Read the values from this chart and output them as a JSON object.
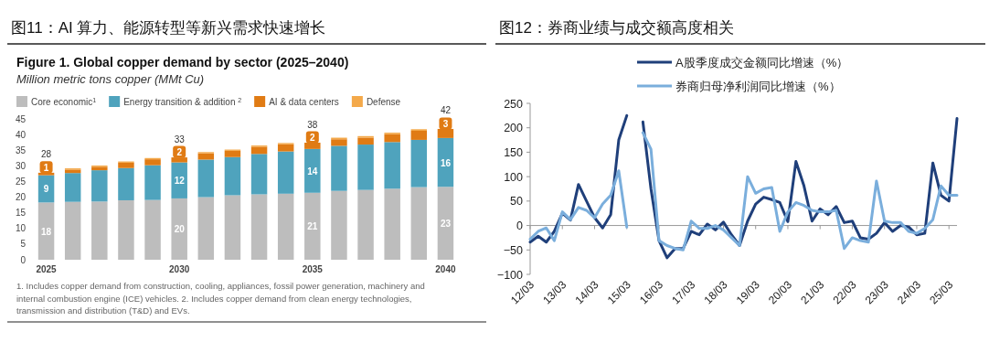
{
  "chart_data": [
    {
      "type": "bar",
      "stacked": true,
      "title": "图11：AI 算力、能源转型等新兴需求快速增长",
      "subtitle": "Figure 1. Global copper demand by sector (2025–2040)",
      "ylabel": "Million metric tons copper (MMt Cu)",
      "annotations": [
        "1. Includes copper demand from construction, cooling, appliances, fossil power generation, machinery and internal combustion engine (ICE) vehicles. 2. Includes copper demand from clean energy technologies, transmission and distribution (T&D) and EVs."
      ],
      "categories": [
        "2025",
        null,
        null,
        null,
        null,
        "2030",
        null,
        null,
        null,
        null,
        "2035",
        null,
        null,
        null,
        null,
        "2040"
      ],
      "series": [
        {
          "name": "Core economic$^{1}$",
          "color": "#bdbdbd",
          "values": [
            18.3,
            18.5,
            18.6,
            19.0,
            19.1,
            19.6,
            20.0,
            20.6,
            20.9,
            21.1,
            21.4,
            22.0,
            22.3,
            22.7,
            23.2,
            23.3
          ],
          "value_labels": [
            "18",
            null,
            null,
            null,
            null,
            "20",
            null,
            null,
            null,
            null,
            "21",
            null,
            null,
            null,
            null,
            "23"
          ]
        },
        {
          "name": "Energy transition & addition $^{2}$",
          "color": "#4fa3bd",
          "values": [
            8.7,
            9.2,
            10.0,
            10.3,
            11.1,
            11.5,
            12.0,
            12.2,
            12.9,
            13.5,
            14.0,
            14.4,
            14.5,
            14.9,
            15.1,
            15.6
          ],
          "value_labels": [
            "9",
            null,
            null,
            null,
            null,
            "12",
            null,
            null,
            null,
            null,
            "14",
            null,
            null,
            null,
            null,
            "16"
          ]
        },
        {
          "name": "AI & data centers",
          "color": "#e07b14",
          "values": [
            0.8,
            1.1,
            1.1,
            1.7,
            1.9,
            1.6,
            2.0,
            2.0,
            2.3,
            2.3,
            2.0,
            2.1,
            2.2,
            2.5,
            2.9,
            2.9
          ],
          "value_labels": [
            "1",
            null,
            null,
            null,
            null,
            "2",
            null,
            null,
            null,
            null,
            "2",
            null,
            null,
            null,
            null,
            "3"
          ]
        },
        {
          "name": "Defense",
          "color": "#f4a94a",
          "values": [
            null,
            0.4,
            0.4,
            0.4,
            0.4,
            null,
            0.4,
            0.4,
            0.4,
            0.4,
            null,
            0.5,
            0.5,
            0.5,
            0.5,
            null
          ]
        }
      ],
      "totals": [
        "28",
        null,
        null,
        null,
        null,
        "33",
        null,
        null,
        null,
        null,
        "38",
        null,
        null,
        null,
        null,
        "42"
      ],
      "ylim": [
        0,
        45
      ],
      "yticks": [
        0,
        5,
        10,
        15,
        20,
        25,
        30,
        35,
        40,
        45
      ],
      "legend": "top left"
    },
    {
      "type": "line",
      "title": "图12：券商业绩与成交额高度相关",
      "x": [
        "2012-03",
        "2012-06",
        "2012-09",
        "2012-12",
        "2013-03",
        "2013-06",
        "2013-09",
        "2013-12",
        "2014-03",
        "2014-06",
        "2014-09",
        "2014-12",
        "2015-03",
        "2015-06",
        "2015-09",
        "2015-12",
        "2016-03",
        "2016-06",
        "2016-09",
        "2016-12",
        "2017-03",
        "2017-06",
        "2017-09",
        "2017-12",
        "2018-03",
        "2018-06",
        "2018-09",
        "2018-12",
        "2019-03",
        "2019-06",
        "2019-09",
        "2019-12",
        "2020-03",
        "2020-06",
        "2020-09",
        "2020-12",
        "2021-03",
        "2021-06",
        "2021-09",
        "2021-12",
        "2022-03",
        "2022-06",
        "2022-09",
        "2022-12",
        "2023-03",
        "2023-06",
        "2023-09",
        "2023-12",
        "2024-03",
        "2024-06",
        "2024-09",
        "2024-12",
        "2025-03",
        "2025-06"
      ],
      "series": [
        {
          "name": "A股季度成交金额同比增速（%）",
          "color": "#1f3f7a",
          "values": [
            -34,
            -22,
            -34,
            -12,
            25,
            11,
            84,
            50,
            16,
            -5,
            22,
            175,
            225,
            null,
            212,
            75,
            -31,
            -66,
            -47,
            -47,
            -12,
            -19,
            3,
            -9,
            7,
            -19,
            -41,
            9,
            44,
            58,
            53,
            47,
            8,
            131,
            81,
            9,
            34,
            22,
            39,
            6,
            9,
            -25,
            -28,
            -16,
            6,
            -12,
            0,
            -3,
            -19,
            -16,
            128,
            62,
            50,
            219
          ]
        },
        {
          "name": "券商归母净利润同比增速（%）",
          "color": "#7aaedc",
          "values": [
            -28,
            -12,
            -5,
            -31,
            28,
            12,
            37,
            31,
            16,
            44,
            62,
            112,
            -3,
            null,
            190,
            156,
            -31,
            -41,
            -47,
            -50,
            9,
            -6,
            -6,
            0,
            -9,
            -25,
            -41,
            100,
            66,
            75,
            78,
            -12,
            28,
            47,
            41,
            31,
            28,
            28,
            31,
            -47,
            -25,
            -31,
            -34,
            91,
            9,
            6,
            6,
            -12,
            -16,
            -6,
            12,
            81,
            62,
            62
          ]
        }
      ],
      "xlim": [
        "2012-03",
        "2025-06"
      ],
      "xticks": [
        {
          "value": "2012-03",
          "label": "12/03"
        },
        {
          "value": "2013-03",
          "label": "13/03"
        },
        {
          "value": "2014-03",
          "label": "14/03"
        },
        {
          "value": "2015-03",
          "label": "15/03"
        },
        {
          "value": "2016-03",
          "label": "16/03"
        },
        {
          "value": "2017-03",
          "label": "17/03"
        },
        {
          "value": "2018-03",
          "label": "18/03"
        },
        {
          "value": "2019-03",
          "label": "19/03"
        },
        {
          "value": "2020-03",
          "label": "20/03"
        },
        {
          "value": "2021-03",
          "label": "21/03"
        },
        {
          "value": "2022-03",
          "label": "22/03"
        },
        {
          "value": "2023-03",
          "label": "23/03"
        },
        {
          "value": "2024-03",
          "label": "24/03"
        },
        {
          "value": "2025-03",
          "label": "25/03"
        }
      ],
      "ylim": [
        -100,
        250
      ],
      "yticks": [
        -100,
        -50,
        0,
        50,
        100,
        150,
        200,
        250
      ],
      "legend": "top"
    }
  ]
}
